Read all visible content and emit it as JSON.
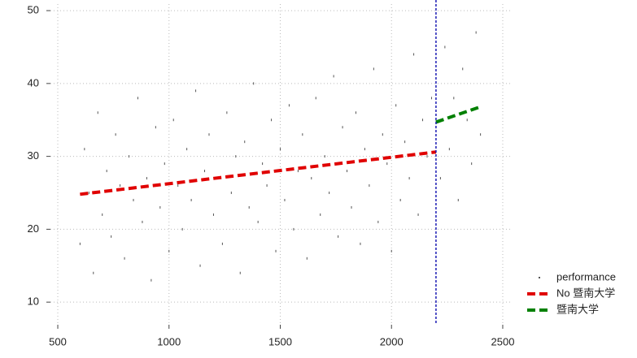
{
  "chart_data": {
    "type": "scatter",
    "xlim": [
      467,
      2544
    ],
    "ylim": [
      6.9,
      50.9
    ],
    "xticks": [
      500,
      1000,
      1500,
      2000,
      2500
    ],
    "yticks": [
      10,
      20,
      30,
      40,
      50
    ],
    "grid": true,
    "cutoff": 2200,
    "cutoff_color": "#1c1cb4",
    "series": [
      {
        "name": "performance",
        "color": "#555555",
        "style": "points",
        "x": [
          600,
          620,
          640,
          660,
          680,
          700,
          720,
          740,
          760,
          780,
          800,
          820,
          840,
          860,
          880,
          900,
          920,
          940,
          960,
          980,
          1000,
          1020,
          1040,
          1060,
          1080,
          1100,
          1120,
          1140,
          1160,
          1180,
          1200,
          1220,
          1240,
          1260,
          1280,
          1300,
          1320,
          1340,
          1360,
          1380,
          1400,
          1420,
          1440,
          1460,
          1480,
          1500,
          1520,
          1540,
          1560,
          1580,
          1600,
          1620,
          1640,
          1660,
          1680,
          1700,
          1720,
          1740,
          1760,
          1780,
          1800,
          1820,
          1840,
          1860,
          1880,
          1900,
          1920,
          1940,
          1960,
          1980,
          2000,
          2020,
          2040,
          2060,
          2080,
          2100,
          2120,
          2140,
          2160,
          2180,
          2200,
          2220,
          2240,
          2260,
          2280,
          2300,
          2320,
          2340,
          2360,
          2380,
          2400
        ],
        "values": [
          18,
          31,
          25,
          14,
          36,
          22,
          28,
          19,
          33,
          26,
          16,
          30,
          24,
          38,
          21,
          27,
          13,
          34,
          23,
          29,
          17,
          35,
          26,
          20,
          31,
          24,
          39,
          15,
          28,
          33,
          22,
          27,
          18,
          36,
          25,
          30,
          14,
          32,
          23,
          40,
          21,
          29,
          26,
          35,
          17,
          31,
          24,
          37,
          20,
          28,
          33,
          16,
          27,
          38,
          22,
          30,
          25,
          41,
          19,
          34,
          28,
          23,
          36,
          18,
          31,
          26,
          42,
          21,
          33,
          29,
          17,
          37,
          24,
          32,
          27,
          44,
          22,
          35,
          30,
          38,
          34,
          27,
          45,
          31,
          38,
          24,
          42,
          35,
          29,
          47,
          33
        ]
      },
      {
        "name": "No 暨南大学",
        "color": "#e00000",
        "style": "dashed-line",
        "x": [
          600,
          2200
        ],
        "values": [
          24.8,
          30.6
        ]
      },
      {
        "name": "暨南大学",
        "color": "#008000",
        "style": "dashed-line",
        "x": [
          2200,
          2400
        ],
        "values": [
          34.7,
          36.8
        ]
      }
    ]
  }
}
